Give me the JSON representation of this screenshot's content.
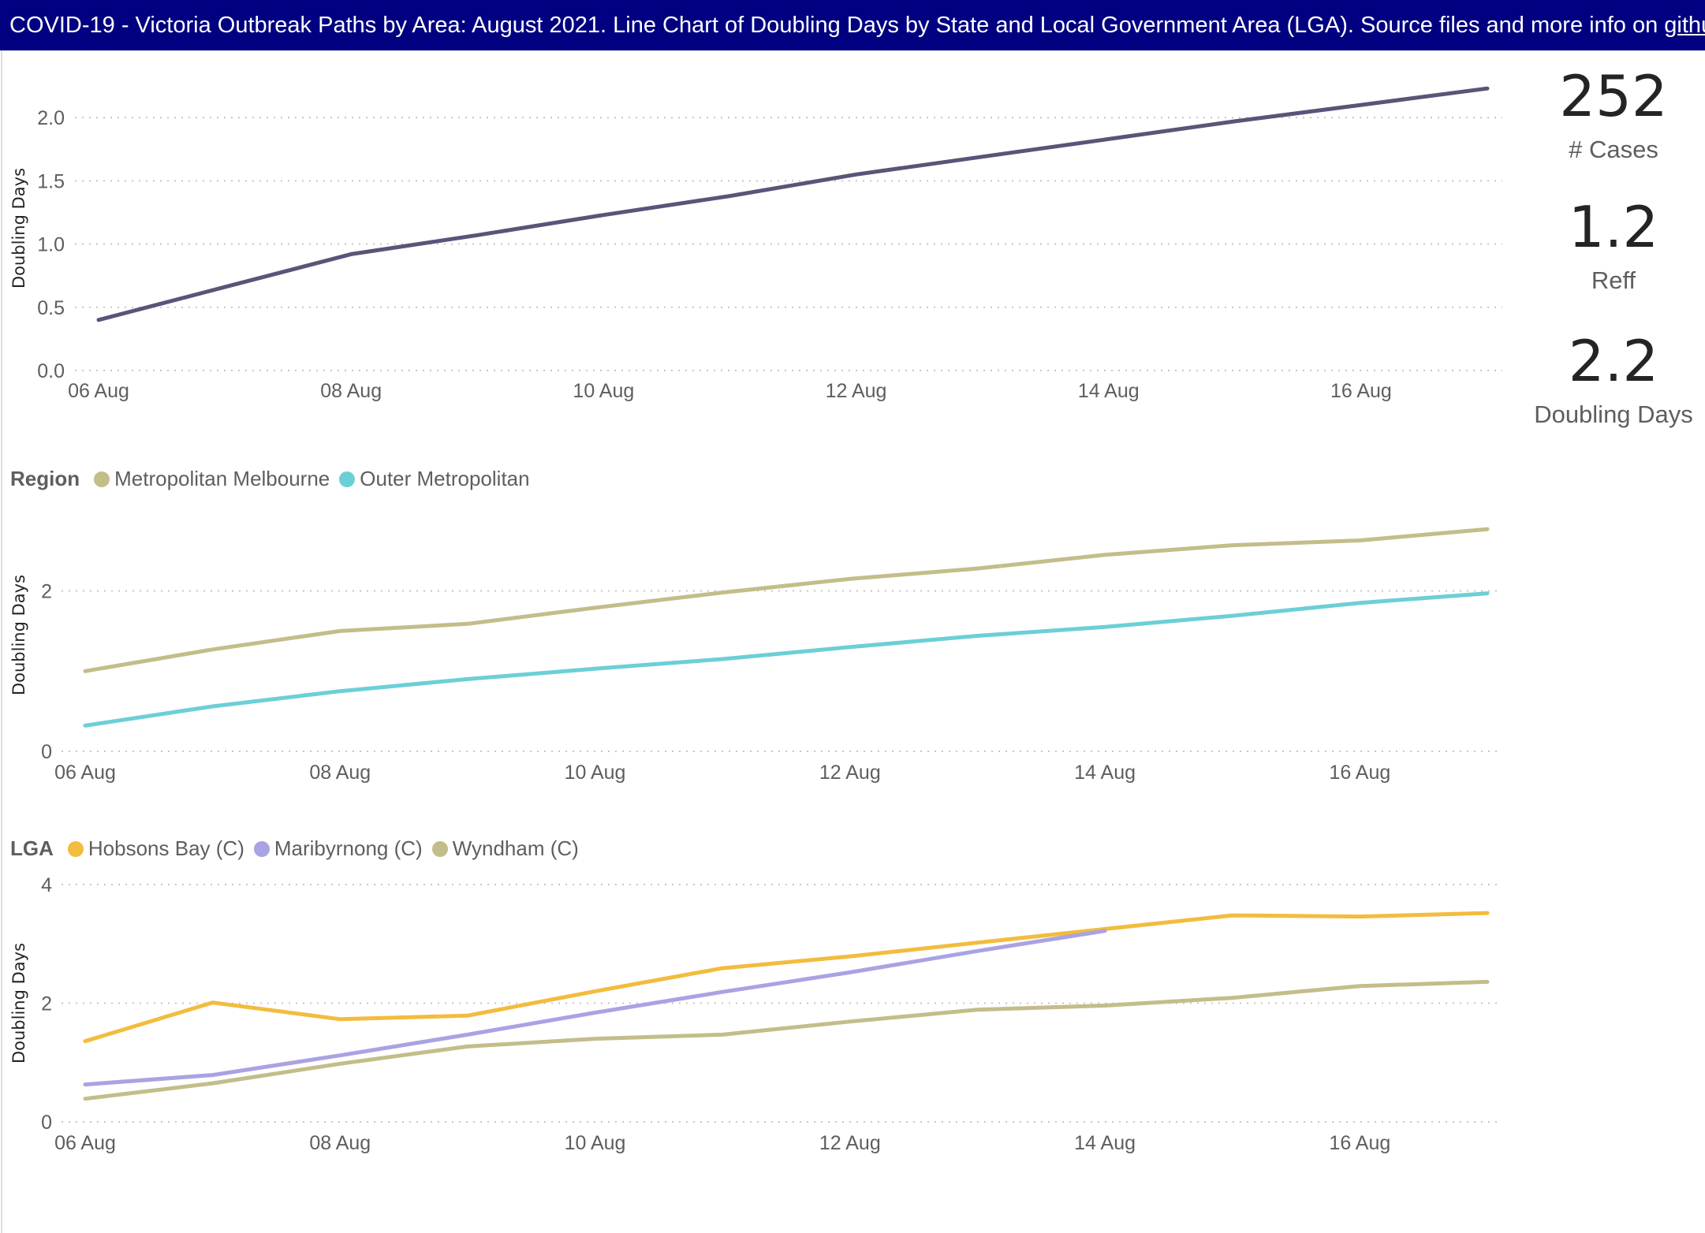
{
  "banner": {
    "text": "COVID-19  - Victoria Outbreak Paths by Area: August 2021.  Line Chart of Doubling Days by State and Local Government Area (LGA). Source files and more info on ",
    "link_text": "github",
    "suffix": "."
  },
  "kpis": [
    {
      "value": "252",
      "label": "# Cases"
    },
    {
      "value": "1.2",
      "label": "Reff"
    },
    {
      "value": "2.2",
      "label": "Doubling Days"
    }
  ],
  "chart_data": [
    {
      "type": "line",
      "ylabel": "Doubling Days",
      "x": [
        "2021-08-06",
        "2021-08-07",
        "2021-08-08",
        "2021-08-09",
        "2021-08-10",
        "2021-08-11",
        "2021-08-12",
        "2021-08-13",
        "2021-08-14",
        "2021-08-15",
        "2021-08-16",
        "2021-08-17"
      ],
      "x_ticks": [
        "06 Aug",
        "08 Aug",
        "10 Aug",
        "12 Aug",
        "14 Aug",
        "16 Aug"
      ],
      "y_ticks": [
        "0.0",
        "0.5",
        "1.0",
        "1.5",
        "2.0"
      ],
      "ylim": [
        0,
        2.25
      ],
      "grid": true,
      "series": [
        {
          "values": [
            0.4,
            0.66,
            0.92,
            1.07,
            1.23,
            1.38,
            1.55,
            1.69,
            1.83,
            1.97,
            2.1,
            2.23
          ],
          "color": "#5a5478"
        }
      ]
    },
    {
      "type": "line",
      "legend_title": "Region",
      "ylabel": "Doubling Days",
      "x": [
        "2021-08-06",
        "2021-08-07",
        "2021-08-08",
        "2021-08-09",
        "2021-08-10",
        "2021-08-11",
        "2021-08-12",
        "2021-08-13",
        "2021-08-14",
        "2021-08-15",
        "2021-08-16",
        "2021-08-17"
      ],
      "x_ticks": [
        "06 Aug",
        "08 Aug",
        "10 Aug",
        "12 Aug",
        "14 Aug",
        "16 Aug"
      ],
      "y_ticks": [
        "0",
        "2"
      ],
      "ylim": [
        0,
        2.9
      ],
      "grid": true,
      "series": [
        {
          "name": "Metropolitan Melbourne",
          "values": [
            1.0,
            1.27,
            1.5,
            1.59,
            1.79,
            1.98,
            2.15,
            2.28,
            2.45,
            2.57,
            2.63,
            2.77
          ],
          "color": "#c3bd8a"
        },
        {
          "name": "Outer Metropolitan",
          "values": [
            0.32,
            0.56,
            0.75,
            0.9,
            1.03,
            1.15,
            1.3,
            1.44,
            1.55,
            1.69,
            1.85,
            1.97
          ],
          "color": "#6ccfd6"
        }
      ]
    },
    {
      "type": "line",
      "legend_title": "LGA",
      "ylabel": "Doubling Days",
      "x": [
        "2021-08-06",
        "2021-08-07",
        "2021-08-08",
        "2021-08-09",
        "2021-08-10",
        "2021-08-11",
        "2021-08-12",
        "2021-08-13",
        "2021-08-14",
        "2021-08-15",
        "2021-08-16",
        "2021-08-17"
      ],
      "x_ticks": [
        "06 Aug",
        "08 Aug",
        "10 Aug",
        "12 Aug",
        "14 Aug",
        "16 Aug"
      ],
      "y_ticks": [
        "0",
        "2",
        "4"
      ],
      "ylim": [
        0,
        4
      ],
      "grid": true,
      "series": [
        {
          "name": "Hobsons Bay (C)",
          "values": [
            1.36,
            2.01,
            1.73,
            1.79,
            2.2,
            2.59,
            2.79,
            3.02,
            3.25,
            3.48,
            3.46,
            3.52
          ],
          "color": "#f2bc3d"
        },
        {
          "name": "Maribyrnong (C)",
          "values": [
            0.63,
            0.79,
            1.12,
            1.47,
            1.84,
            2.19,
            2.52,
            2.88,
            3.22,
            null,
            null,
            null
          ],
          "color": "#a9a3e3"
        },
        {
          "name": "Wyndham (C)",
          "values": [
            0.39,
            0.65,
            0.98,
            1.27,
            1.4,
            1.47,
            1.69,
            1.89,
            1.96,
            2.09,
            2.29,
            2.36
          ],
          "color": "#c3bd8a"
        }
      ]
    }
  ]
}
